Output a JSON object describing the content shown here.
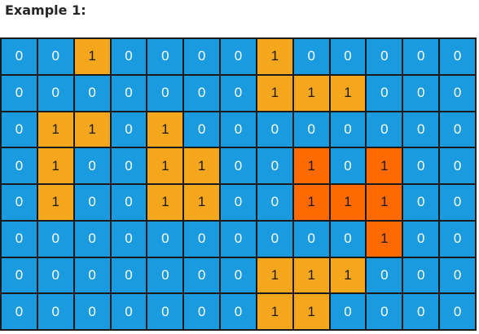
{
  "title": "Example 1:",
  "colors": {
    "water": "#1a9be0",
    "land": "#f4a71c",
    "highlighted_island": "#ff6a00"
  },
  "grid": [
    [
      0,
      0,
      1,
      0,
      0,
      0,
      0,
      1,
      0,
      0,
      0,
      0,
      0
    ],
    [
      0,
      0,
      0,
      0,
      0,
      0,
      0,
      1,
      1,
      1,
      0,
      0,
      0
    ],
    [
      0,
      1,
      1,
      0,
      1,
      0,
      0,
      0,
      0,
      0,
      0,
      0,
      0
    ],
    [
      0,
      1,
      0,
      0,
      1,
      1,
      0,
      0,
      1,
      0,
      1,
      0,
      0
    ],
    [
      0,
      1,
      0,
      0,
      1,
      1,
      0,
      0,
      1,
      1,
      1,
      0,
      0
    ],
    [
      0,
      0,
      0,
      0,
      0,
      0,
      0,
      0,
      0,
      0,
      1,
      0,
      0
    ],
    [
      0,
      0,
      0,
      0,
      0,
      0,
      0,
      1,
      1,
      1,
      0,
      0,
      0
    ],
    [
      0,
      0,
      0,
      0,
      0,
      0,
      0,
      1,
      1,
      0,
      0,
      0,
      0
    ]
  ],
  "highlighted_cells": [
    [
      3,
      8
    ],
    [
      3,
      10
    ],
    [
      4,
      8
    ],
    [
      4,
      9
    ],
    [
      4,
      10
    ],
    [
      5,
      10
    ]
  ]
}
